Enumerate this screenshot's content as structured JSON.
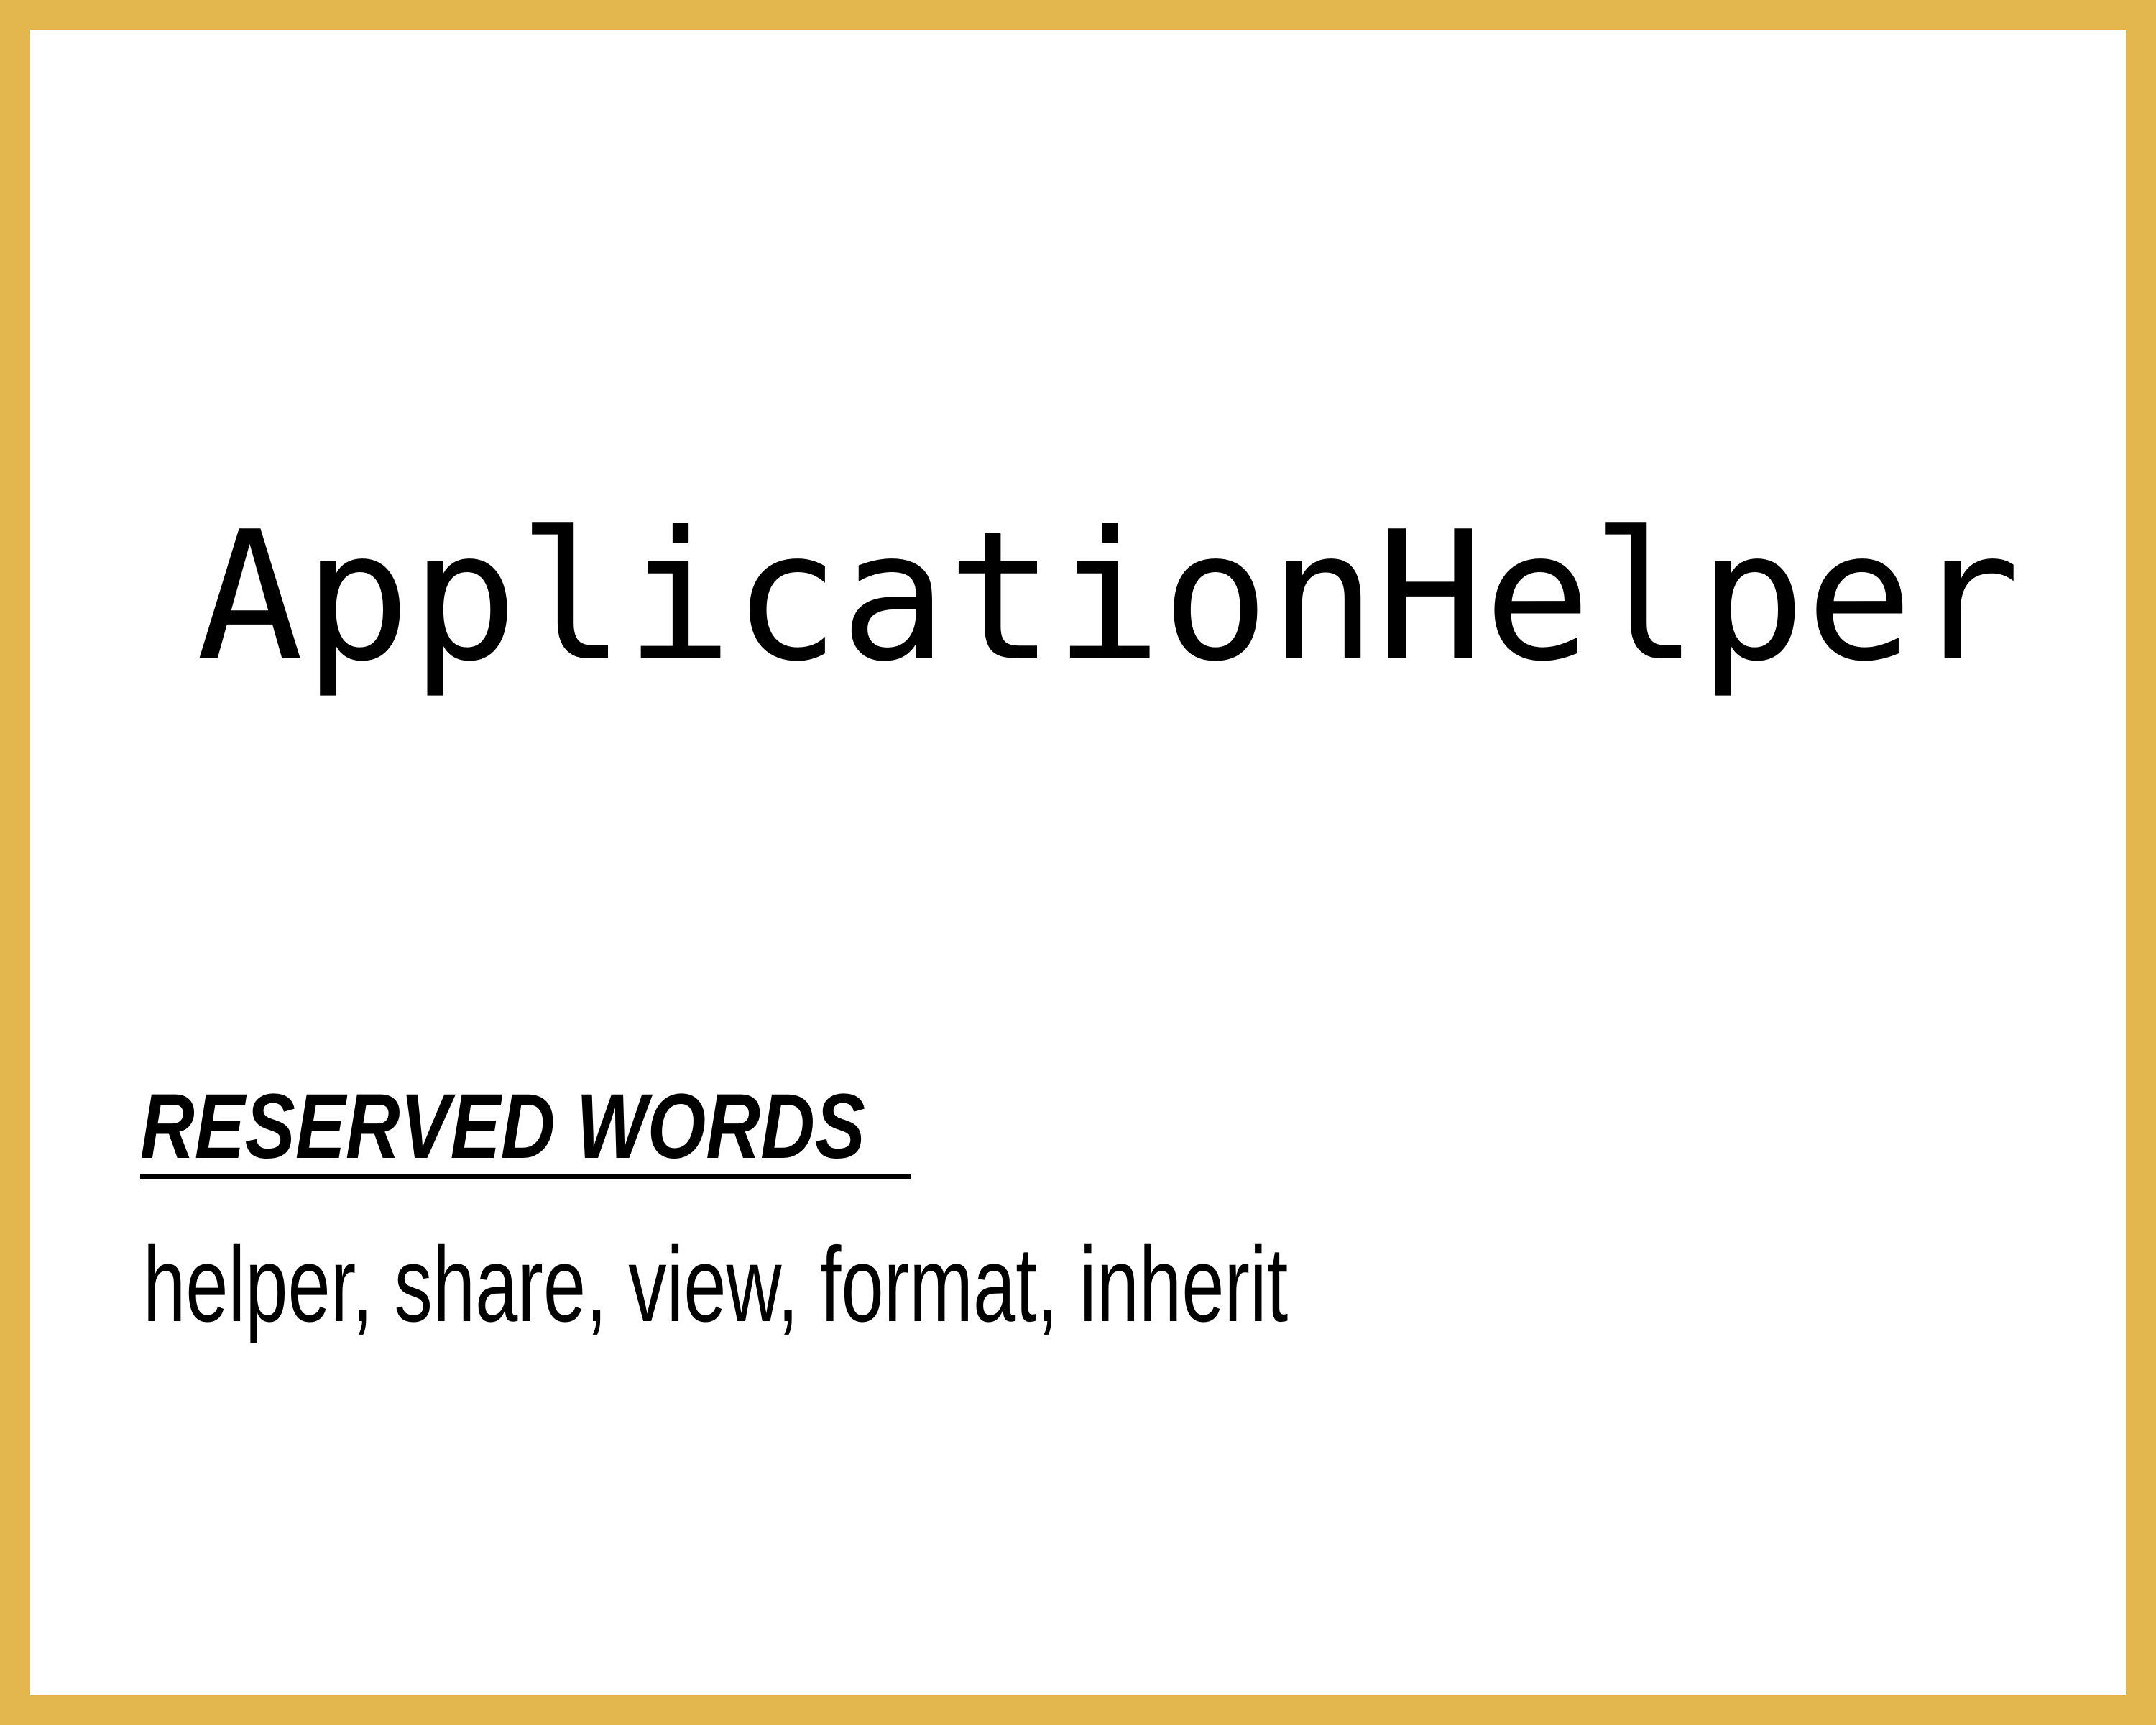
{
  "card": {
    "term": "ApplicationHelper",
    "reserved_heading": "RESERVED WORDS",
    "reserved_words": "helper, share, view, format, inherit"
  },
  "colors": {
    "border": "#E3B74D",
    "background": "#FFFFFF",
    "text": "#000000"
  }
}
